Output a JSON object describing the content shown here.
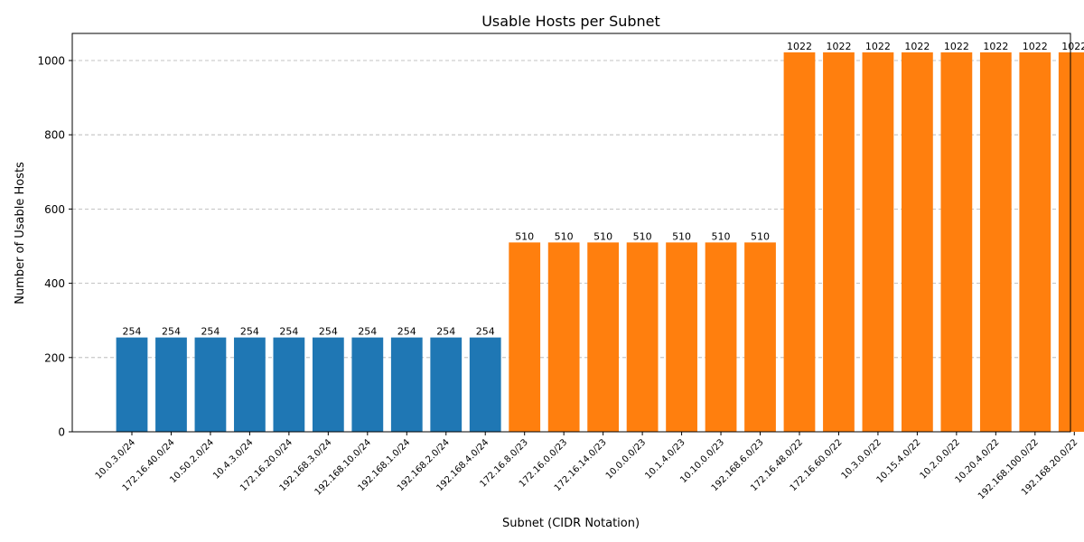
{
  "chart_data": {
    "type": "bar",
    "title": "Usable Hosts per Subnet",
    "xlabel": "Subnet (CIDR Notation)",
    "ylabel": "Number of Usable Hosts",
    "ylim": [
      0,
      1073
    ],
    "yticks": [
      0,
      200,
      400,
      600,
      800,
      1000
    ],
    "grid": "y-dashed",
    "colors": {
      "/24": "#1f77b4",
      "/23": "#ff7f0e",
      "/22": "#ff7f0e"
    },
    "categories": [
      "10.0.3.0/24",
      "172.16.40.0/24",
      "10.50.2.0/24",
      "10.4.3.0/24",
      "172.16.20.0/24",
      "192.168.3.0/24",
      "192.168.10.0/24",
      "192.168.1.0/24",
      "192.168.2.0/24",
      "192.168.4.0/24",
      "172.16.8.0/23",
      "172.16.0.0/23",
      "172.16.14.0/23",
      "10.0.0.0/23",
      "10.1.4.0/23",
      "10.10.0.0/23",
      "192.168.6.0/23",
      "172.16.48.0/22",
      "172.16.60.0/22",
      "10.3.0.0/22",
      "10.15.4.0/22",
      "10.2.0.0/22",
      "10.20.4.0/22",
      "192.168.100.0/22",
      "192.168.20.0/22"
    ],
    "values": [
      254,
      254,
      254,
      254,
      254,
      254,
      254,
      254,
      254,
      254,
      510,
      510,
      510,
      510,
      510,
      510,
      510,
      1022,
      1022,
      1022,
      1022,
      1022,
      1022,
      1022,
      1022
    ]
  }
}
